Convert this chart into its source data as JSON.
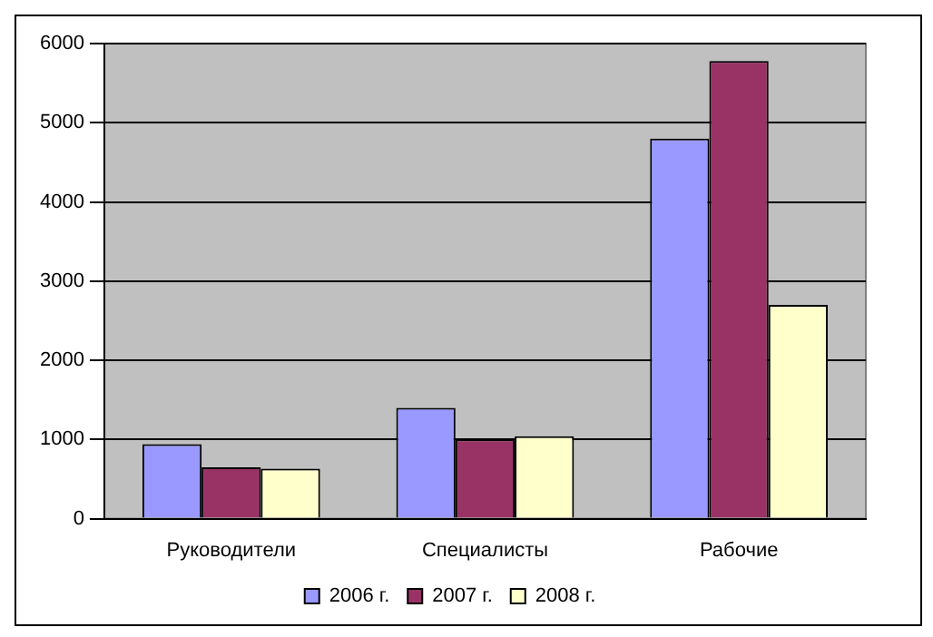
{
  "chart_data": {
    "type": "bar",
    "categories": [
      "Руководители",
      "Специалисты",
      "Рабочие"
    ],
    "series": [
      {
        "name": "2006 г.",
        "color": "#9999ff",
        "values": [
          940,
          1400,
          4800
        ]
      },
      {
        "name": "2007 г.",
        "color": "#993366",
        "values": [
          650,
          1000,
          5780
        ]
      },
      {
        "name": "2008 г.",
        "color": "#ffffcc",
        "values": [
          630,
          1040,
          2700
        ]
      }
    ],
    "ylim": [
      0,
      6000
    ],
    "yticks": [
      0,
      1000,
      2000,
      3000,
      4000,
      5000,
      6000
    ],
    "grid": "y",
    "legend": "bottom"
  }
}
